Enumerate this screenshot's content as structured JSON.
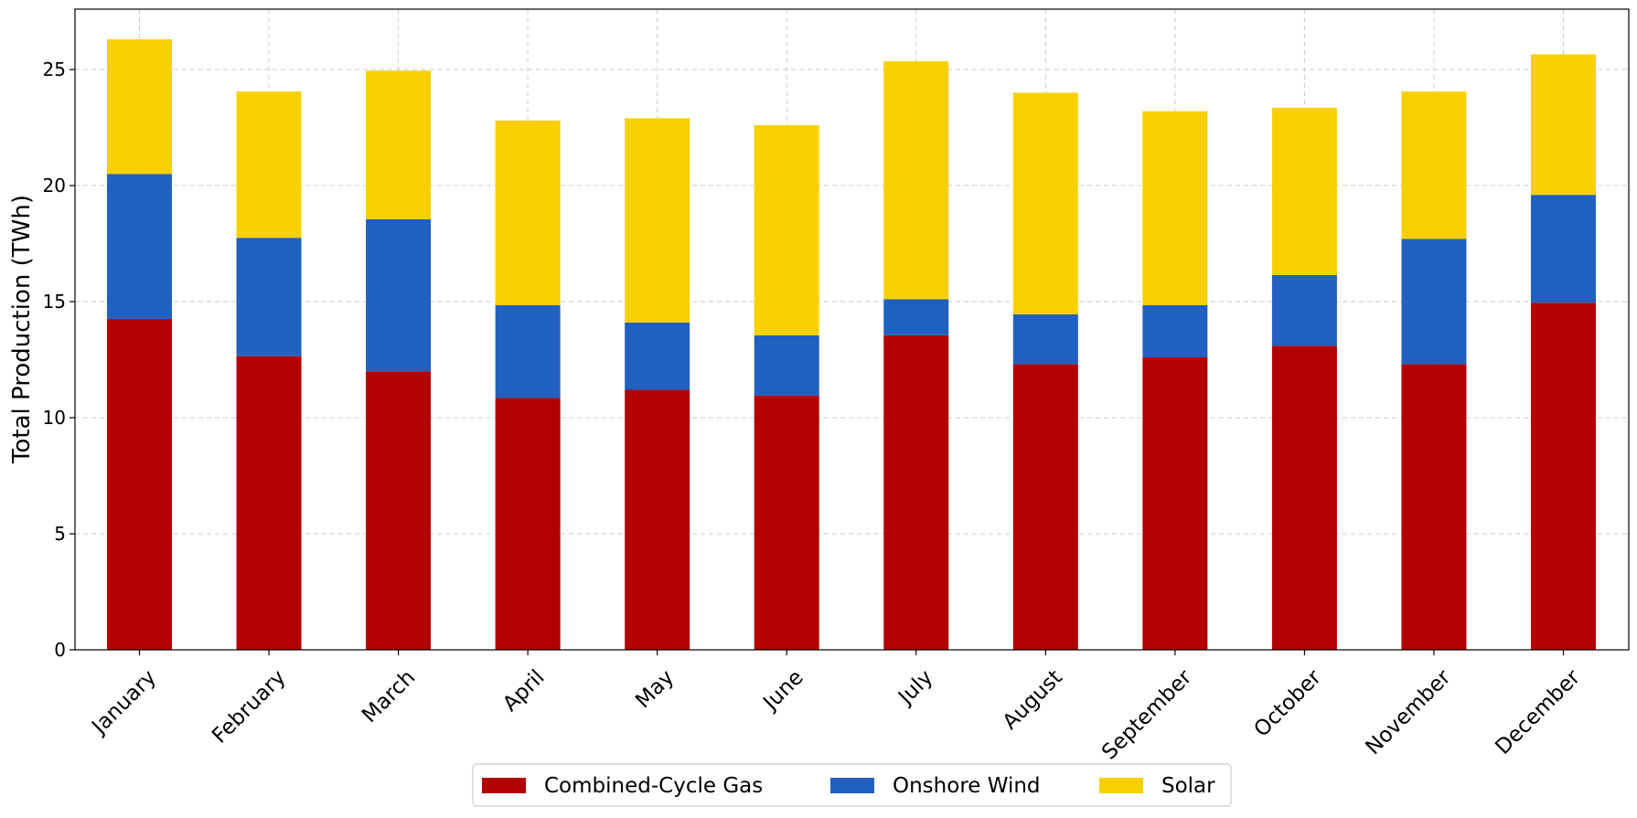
{
  "chart_data": {
    "type": "bar",
    "stacked": true,
    "title": "",
    "xlabel": "",
    "ylabel": "Total Production (TWh)",
    "ylim": [
      0,
      27.6
    ],
    "yticks": [
      0,
      5,
      10,
      15,
      20,
      25
    ],
    "grid": true,
    "legend_position": "bottom-center",
    "categories": [
      "January",
      "February",
      "March",
      "April",
      "May",
      "June",
      "July",
      "August",
      "September",
      "October",
      "November",
      "December"
    ],
    "series": [
      {
        "name": "Combined-Cycle Gas",
        "color": "#b30000",
        "values": [
          14.25,
          12.65,
          12.0,
          10.85,
          11.2,
          10.95,
          13.55,
          12.3,
          12.6,
          13.1,
          12.3,
          14.95
        ]
      },
      {
        "name": "Onshore Wind",
        "color": "#2260bf",
        "values": [
          6.25,
          5.1,
          6.55,
          4.0,
          2.9,
          2.6,
          1.55,
          2.15,
          2.25,
          3.05,
          5.4,
          4.65
        ]
      },
      {
        "name": "Solar",
        "color": "#f8d000",
        "values": [
          5.8,
          6.3,
          6.4,
          7.95,
          8.8,
          9.05,
          10.25,
          9.55,
          8.35,
          7.2,
          6.35,
          6.05
        ]
      }
    ]
  }
}
